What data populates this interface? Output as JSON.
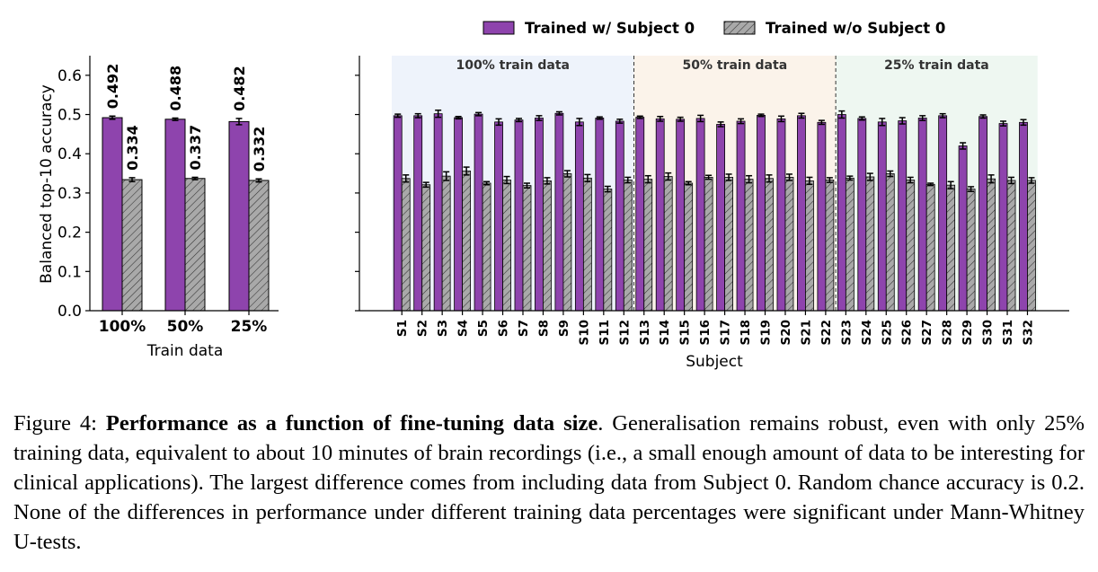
{
  "colors": {
    "with": "#8e44ad",
    "without": "#a9a9a9",
    "edge": "#000000",
    "bg100": "#eef3fb",
    "bg50": "#fbf3ea",
    "bg25": "#eef7f1"
  },
  "legend": {
    "with_label": "Trained w/ Subject 0",
    "without_label": "Trained w/o Subject 0"
  },
  "chart_data": [
    {
      "type": "bar",
      "categories": [
        "100%",
        "50%",
        "25%"
      ],
      "series": [
        {
          "name": "Trained w/ Subject 0",
          "values": [
            0.492,
            0.488,
            0.482
          ],
          "errors": [
            0.004,
            0.003,
            0.008
          ],
          "labels": [
            "0.492",
            "0.488",
            "0.482"
          ]
        },
        {
          "name": "Trained w/o Subject 0",
          "values": [
            0.334,
            0.337,
            0.332
          ],
          "errors": [
            0.005,
            0.003,
            0.004
          ],
          "labels": [
            "0.334",
            "0.337",
            "0.332"
          ]
        }
      ],
      "xlabel": "Train data",
      "ylabel": "Balanced top-10 accuracy",
      "ylim": [
        0,
        0.65
      ],
      "yticks": [
        "0.0",
        "0.1",
        "0.2",
        "0.3",
        "0.4",
        "0.5",
        "0.6"
      ]
    },
    {
      "type": "bar",
      "categories": [
        "S1",
        "S2",
        "S3",
        "S4",
        "S5",
        "S6",
        "S7",
        "S8",
        "S9",
        "S10",
        "S11",
        "S12",
        "S13",
        "S14",
        "S15",
        "S16",
        "S17",
        "S18",
        "S19",
        "S20",
        "S21",
        "S22",
        "S23",
        "S24",
        "S25",
        "S26",
        "S27",
        "S28",
        "S29",
        "S30",
        "S31",
        "S32"
      ],
      "series": [
        {
          "name": "Trained w/ Subject 0",
          "values": [
            0.497,
            0.497,
            0.502,
            0.492,
            0.501,
            0.481,
            0.486,
            0.491,
            0.503,
            0.481,
            0.491,
            0.483,
            0.493,
            0.489,
            0.488,
            0.49,
            0.475,
            0.483,
            0.498,
            0.489,
            0.497,
            0.48,
            0.5,
            0.49,
            0.481,
            0.484,
            0.491,
            0.497,
            0.42,
            0.495,
            0.477,
            0.48
          ],
          "errors": [
            0.004,
            0.005,
            0.009,
            0.003,
            0.004,
            0.008,
            0.004,
            0.006,
            0.004,
            0.009,
            0.003,
            0.005,
            0.003,
            0.006,
            0.005,
            0.008,
            0.006,
            0.006,
            0.003,
            0.007,
            0.006,
            0.005,
            0.009,
            0.004,
            0.009,
            0.008,
            0.006,
            0.005,
            0.008,
            0.004,
            0.006,
            0.007
          ]
        },
        {
          "name": "Trained w/o Subject 0",
          "values": [
            0.337,
            0.321,
            0.343,
            0.356,
            0.325,
            0.333,
            0.319,
            0.331,
            0.349,
            0.338,
            0.31,
            0.333,
            0.335,
            0.342,
            0.325,
            0.34,
            0.34,
            0.335,
            0.337,
            0.34,
            0.331,
            0.333,
            0.338,
            0.341,
            0.349,
            0.333,
            0.322,
            0.32,
            0.31,
            0.336,
            0.332,
            0.332
          ],
          "errors": [
            0.009,
            0.006,
            0.011,
            0.01,
            0.004,
            0.009,
            0.006,
            0.008,
            0.008,
            0.009,
            0.007,
            0.007,
            0.009,
            0.009,
            0.004,
            0.005,
            0.008,
            0.009,
            0.009,
            0.008,
            0.009,
            0.006,
            0.005,
            0.009,
            0.007,
            0.007,
            0.003,
            0.009,
            0.006,
            0.01,
            0.008,
            0.007
          ]
        }
      ],
      "groups": [
        {
          "label": "100% train data",
          "count": 12
        },
        {
          "label": "50% train data",
          "count": 10
        },
        {
          "label": "25% train data",
          "count": 10
        }
      ],
      "xlabel": "Subject",
      "ylim": [
        0,
        0.65
      ]
    }
  ],
  "caption": {
    "label": "Figure 4:",
    "title": "Performance as a function of fine-tuning data size",
    "text": ". Generalisation remains robust, even with only 25% training data, equivalent to about 10 minutes of brain recordings (i.e., a small enough amount of data to be interesting for clinical applications). The largest difference comes from including data from Subject 0. Random chance accuracy is 0.2. None of the differences in performance under different training data percentages were significant under Mann-Whitney U-tests."
  }
}
